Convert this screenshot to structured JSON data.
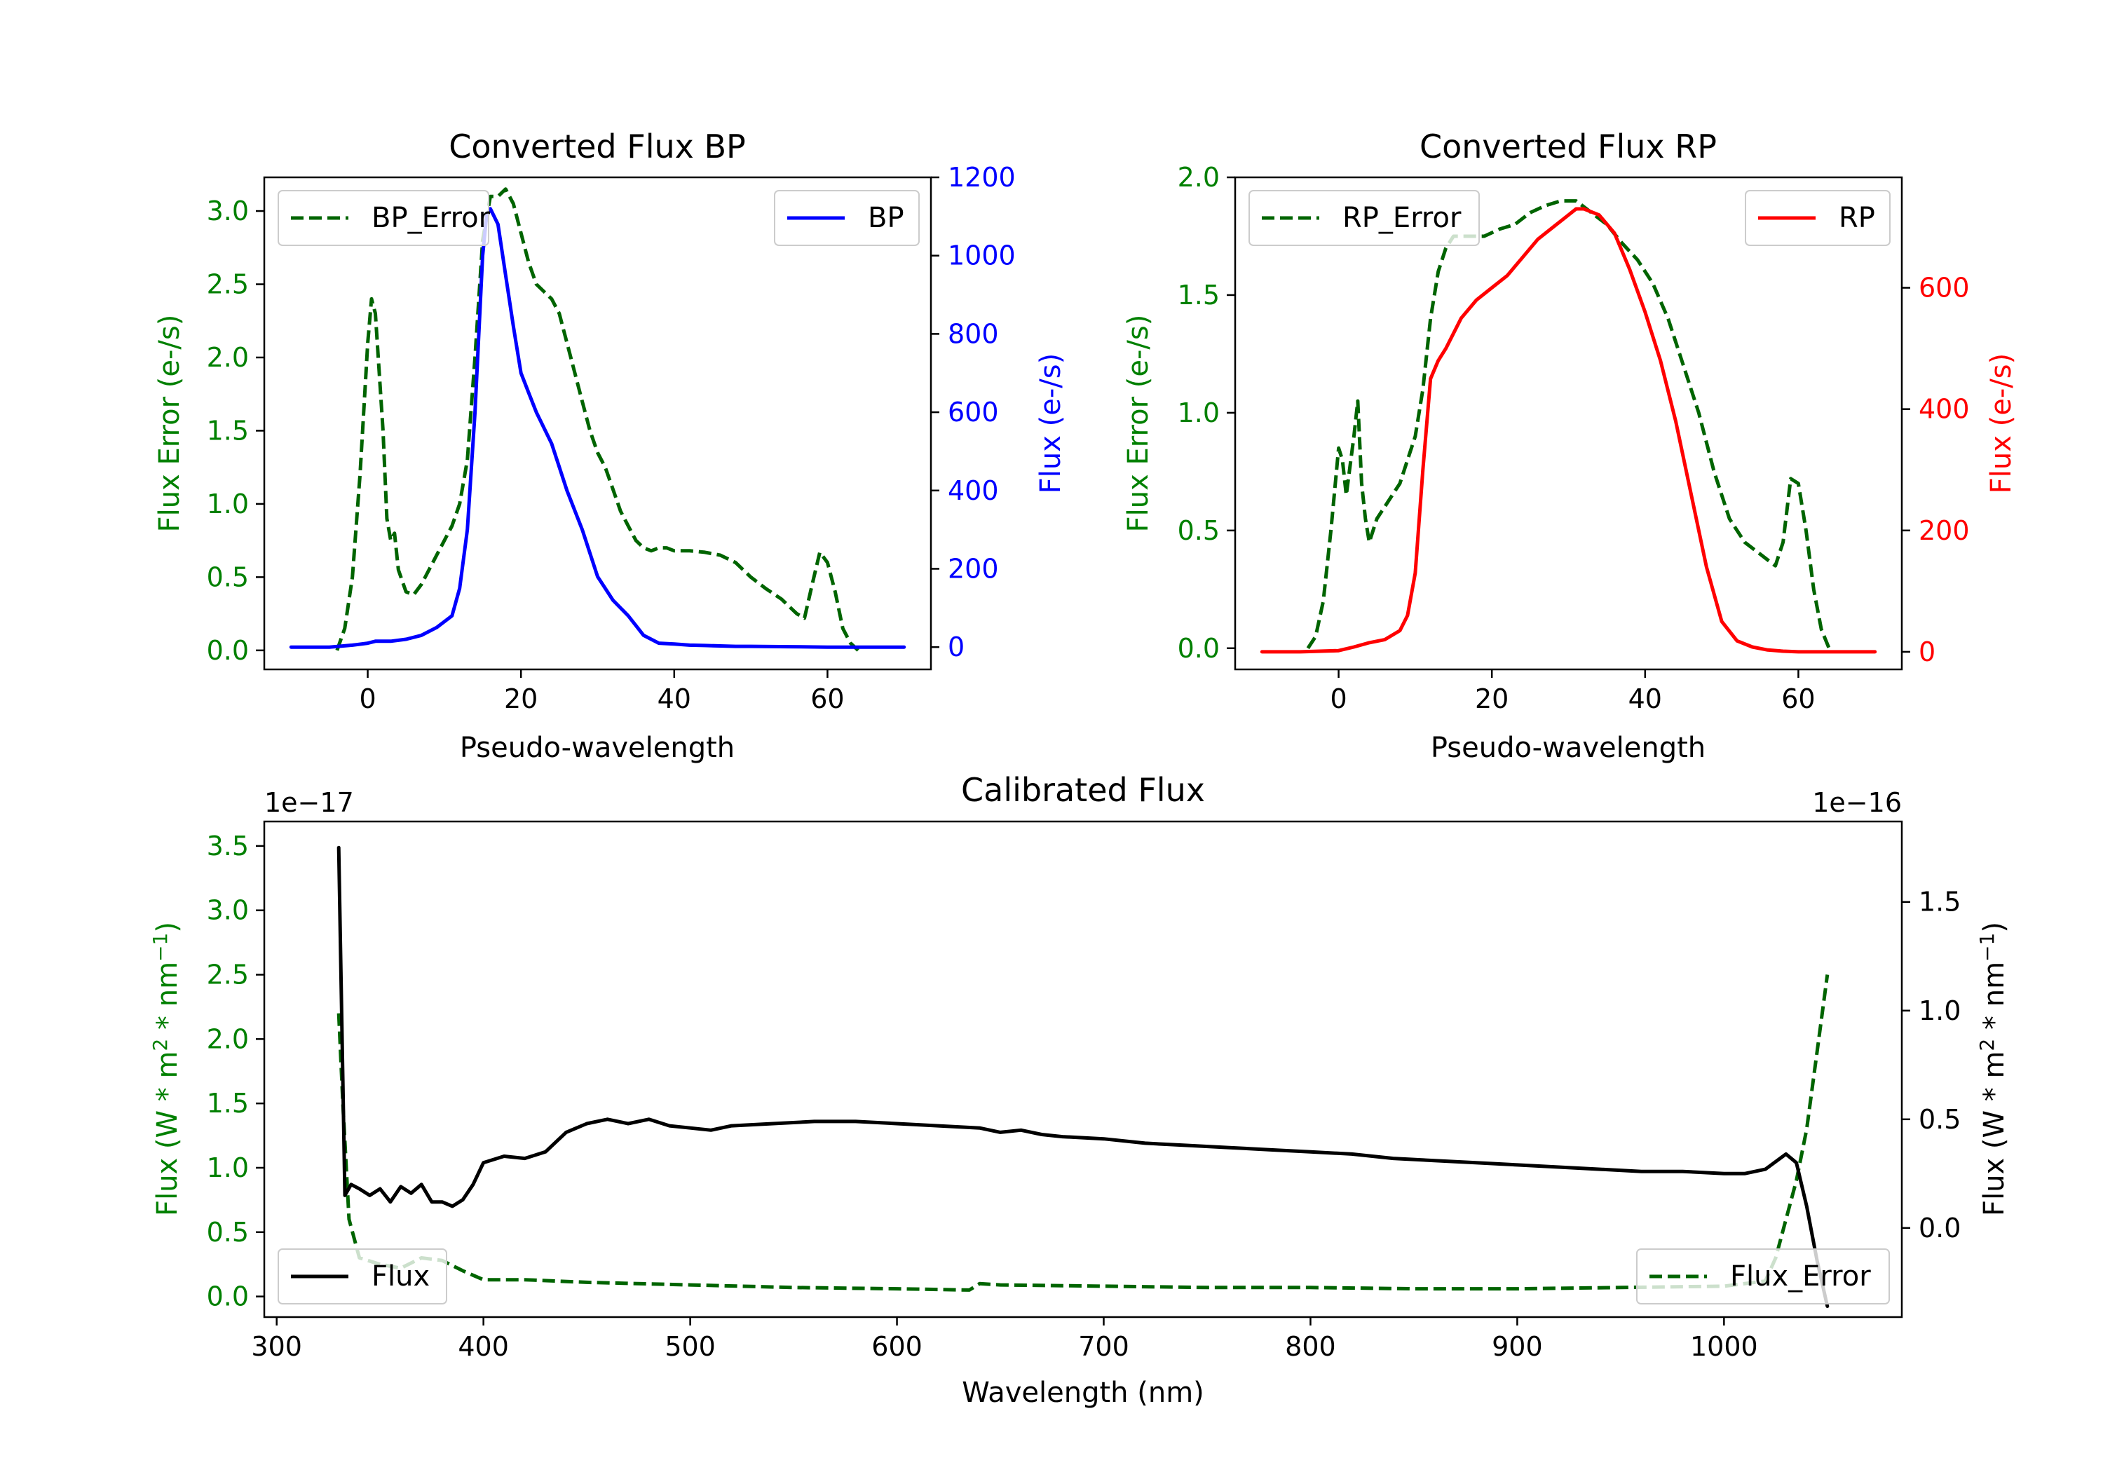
{
  "chart_data": [
    {
      "type": "line",
      "title": "Converted Flux BP",
      "xlabel": "Pseudo-wavelength",
      "ylabel_left": "Flux Error (e-/s)",
      "ylabel_right": "Flux (e-/s)",
      "xlim": [
        -13.5,
        73.5
      ],
      "xticks": [
        0,
        20,
        40,
        60
      ],
      "ylim_left": [
        -0.13,
        3.23
      ],
      "yticks_left": [
        0.0,
        0.5,
        1.0,
        1.5,
        2.0,
        2.5,
        3.0
      ],
      "ylim_right": [
        -57,
        1200
      ],
      "yticks_right": [
        0,
        200,
        400,
        600,
        800,
        1000,
        1200
      ],
      "colors": {
        "left_axis": "#008000",
        "right_axis": "#0000ff"
      },
      "legend_left": {
        "label": "BP_Error",
        "placement": "upper left"
      },
      "legend_right": {
        "label": "BP",
        "placement": "upper right"
      },
      "series": [
        {
          "name": "BP_Error",
          "axis": "left",
          "style": "dashed",
          "color": "#006400",
          "x": [
            -4,
            -3,
            -2,
            -1,
            0,
            0.5,
            1,
            2,
            2.5,
            3,
            3.5,
            4,
            5,
            6,
            7,
            8,
            9,
            10,
            11,
            12,
            13,
            14,
            15,
            16,
            17,
            18,
            19,
            20,
            21,
            22,
            23,
            24,
            25,
            26,
            27,
            28,
            29,
            30,
            31,
            32,
            33,
            34,
            35,
            36,
            37,
            38,
            39,
            40,
            42,
            44,
            46,
            48,
            50,
            52,
            54,
            56,
            57,
            58,
            59,
            60,
            61,
            62,
            63,
            64
          ],
          "values": [
            0.0,
            0.15,
            0.5,
            1.2,
            2.1,
            2.4,
            2.3,
            1.5,
            0.9,
            0.75,
            0.8,
            0.55,
            0.4,
            0.38,
            0.45,
            0.55,
            0.65,
            0.75,
            0.85,
            1.0,
            1.3,
            2.0,
            2.8,
            3.1,
            3.1,
            3.15,
            3.05,
            2.85,
            2.65,
            2.5,
            2.45,
            2.4,
            2.3,
            2.1,
            1.9,
            1.7,
            1.5,
            1.35,
            1.25,
            1.1,
            0.95,
            0.85,
            0.75,
            0.7,
            0.68,
            0.7,
            0.7,
            0.68,
            0.68,
            0.67,
            0.65,
            0.6,
            0.5,
            0.42,
            0.35,
            0.25,
            0.22,
            0.45,
            0.67,
            0.6,
            0.4,
            0.15,
            0.05,
            0.0
          ]
        },
        {
          "name": "BP",
          "axis": "right",
          "style": "solid",
          "color": "#0000ff",
          "x": [
            -10,
            -5,
            -2,
            0,
            1,
            3,
            5,
            7,
            9,
            11,
            12,
            13,
            14,
            15,
            15.5,
            16,
            17,
            18,
            19,
            20,
            21,
            22,
            24,
            26,
            28,
            30,
            32,
            34,
            36,
            38,
            40,
            42,
            44,
            46,
            48,
            50,
            55,
            60,
            65,
            70
          ],
          "values": [
            0,
            0,
            5,
            10,
            15,
            15,
            20,
            30,
            50,
            80,
            150,
            300,
            600,
            1000,
            1100,
            1120,
            1080,
            950,
            820,
            700,
            650,
            600,
            520,
            400,
            300,
            180,
            120,
            80,
            30,
            10,
            8,
            5,
            4,
            3,
            2,
            2,
            1,
            0,
            0,
            0
          ]
        }
      ]
    },
    {
      "type": "line",
      "title": "Converted Flux RP",
      "xlabel": "Pseudo-wavelength",
      "ylabel_left": "Flux Error (e-/s)",
      "ylabel_right": "Flux (e-/s)",
      "xlim": [
        -13.5,
        73.5
      ],
      "xticks": [
        0,
        20,
        40,
        60
      ],
      "ylim_left": [
        -0.09,
        2.0
      ],
      "yticks_left": [
        0.0,
        0.5,
        1.0,
        1.5,
        2.0
      ],
      "ylim_right": [
        -29,
        782
      ],
      "yticks_right": [
        0,
        200,
        400,
        600
      ],
      "colors": {
        "left_axis": "#008000",
        "right_axis": "#ff0000"
      },
      "legend_left": {
        "label": "RP_Error",
        "placement": "upper left"
      },
      "legend_right": {
        "label": "RP",
        "placement": "upper right"
      },
      "series": [
        {
          "name": "RP_Error",
          "axis": "left",
          "style": "dashed",
          "color": "#006400",
          "x": [
            -4,
            -3,
            -2,
            -1,
            0,
            0.5,
            1,
            2,
            2.5,
            3,
            3.5,
            4,
            5,
            6,
            7,
            8,
            9,
            10,
            11,
            12,
            13,
            14,
            15,
            17,
            19,
            21,
            23,
            25,
            27,
            29,
            31,
            33,
            35,
            37,
            39,
            41,
            43,
            45,
            47,
            49,
            51,
            53,
            55,
            57,
            58,
            59,
            60,
            61,
            62,
            63,
            64
          ],
          "values": [
            0.0,
            0.05,
            0.2,
            0.5,
            0.85,
            0.8,
            0.65,
            0.9,
            1.05,
            0.7,
            0.55,
            0.45,
            0.55,
            0.6,
            0.65,
            0.7,
            0.8,
            0.9,
            1.1,
            1.4,
            1.6,
            1.7,
            1.75,
            1.75,
            1.75,
            1.78,
            1.8,
            1.85,
            1.88,
            1.9,
            1.9,
            1.85,
            1.8,
            1.72,
            1.65,
            1.55,
            1.4,
            1.2,
            1.0,
            0.75,
            0.55,
            0.45,
            0.4,
            0.35,
            0.45,
            0.72,
            0.7,
            0.5,
            0.25,
            0.08,
            0.0
          ]
        },
        {
          "name": "RP",
          "axis": "right",
          "style": "solid",
          "color": "#ff0000",
          "x": [
            -10,
            -5,
            0,
            2,
            4,
            6,
            8,
            9,
            10,
            11,
            12,
            13,
            14,
            16,
            18,
            20,
            22,
            24,
            26,
            28,
            30,
            31,
            32,
            33,
            34,
            36,
            38,
            40,
            42,
            44,
            46,
            48,
            50,
            52,
            54,
            56,
            58,
            60,
            65,
            70
          ],
          "values": [
            0,
            0,
            2,
            8,
            15,
            20,
            35,
            60,
            130,
            300,
            450,
            480,
            500,
            550,
            580,
            600,
            620,
            650,
            680,
            700,
            720,
            730,
            730,
            725,
            720,
            690,
            630,
            560,
            480,
            380,
            260,
            140,
            50,
            18,
            8,
            3,
            1,
            0,
            0,
            0
          ]
        }
      ]
    },
    {
      "type": "line",
      "title": "Calibrated Flux",
      "xlabel": "Wavelength (nm)",
      "ylabel_left": "Flux (W * m",
      "ylabel_right": "Flux (W * m",
      "ylabel_unit_tail": " * nm",
      "ylabel_exp_2": "2",
      "ylabel_exp_m1": "−1",
      "ylabel_close": ")",
      "offset_left": "1e−17",
      "offset_right": "1e−16",
      "xlim": [
        294,
        1086
      ],
      "xticks": [
        300,
        400,
        500,
        600,
        700,
        800,
        900,
        1000
      ],
      "ylim_left": [
        -0.16,
        3.69
      ],
      "yticks_left": [
        "0.0",
        "0.5",
        "1.0",
        "1.5",
        "2.0",
        "2.5",
        "3.0",
        "3.5"
      ],
      "ylim_right": [
        -0.41,
        1.87
      ],
      "yticks_right": [
        "0.0",
        "0.5",
        "1.0",
        "1.5"
      ],
      "colors": {
        "left_axis": "#008000",
        "right_axis": "#000000"
      },
      "legend_left": {
        "label": "Flux",
        "placement": "lower left"
      },
      "legend_right": {
        "label": "Flux_Error",
        "placement": "lower right"
      },
      "series": [
        {
          "name": "Flux_Error",
          "axis": "left",
          "style": "dashed",
          "color": "#006400",
          "x": [
            330,
            332,
            335,
            340,
            350,
            360,
            370,
            380,
            390,
            400,
            420,
            450,
            500,
            550,
            600,
            635,
            640,
            650,
            700,
            750,
            800,
            850,
            900,
            950,
            1000,
            1020,
            1025,
            1030,
            1035,
            1040,
            1045,
            1050
          ],
          "values": [
            2.2,
            1.5,
            0.6,
            0.3,
            0.25,
            0.22,
            0.3,
            0.28,
            0.2,
            0.13,
            0.13,
            0.11,
            0.09,
            0.07,
            0.06,
            0.05,
            0.1,
            0.09,
            0.08,
            0.07,
            0.07,
            0.06,
            0.06,
            0.07,
            0.08,
            0.12,
            0.3,
            0.6,
            0.9,
            1.3,
            1.9,
            2.5
          ]
        },
        {
          "name": "Flux",
          "axis": "right",
          "style": "solid",
          "color": "#000000",
          "x": [
            330,
            333,
            336,
            340,
            345,
            350,
            355,
            360,
            365,
            370,
            375,
            380,
            385,
            390,
            395,
            400,
            410,
            420,
            430,
            440,
            450,
            460,
            470,
            480,
            490,
            500,
            510,
            520,
            540,
            560,
            580,
            600,
            620,
            640,
            650,
            660,
            670,
            680,
            700,
            720,
            740,
            760,
            780,
            800,
            820,
            840,
            860,
            880,
            900,
            920,
            940,
            960,
            980,
            1000,
            1010,
            1020,
            1030,
            1035,
            1040,
            1045,
            1050
          ],
          "values": [
            1.75,
            0.15,
            0.2,
            0.18,
            0.15,
            0.18,
            0.12,
            0.19,
            0.16,
            0.2,
            0.12,
            0.12,
            0.1,
            0.13,
            0.2,
            0.3,
            0.33,
            0.32,
            0.35,
            0.44,
            0.48,
            0.5,
            0.48,
            0.5,
            0.47,
            0.46,
            0.45,
            0.47,
            0.48,
            0.49,
            0.49,
            0.48,
            0.47,
            0.46,
            0.44,
            0.45,
            0.43,
            0.42,
            0.41,
            0.39,
            0.38,
            0.37,
            0.36,
            0.35,
            0.34,
            0.32,
            0.31,
            0.3,
            0.29,
            0.28,
            0.27,
            0.26,
            0.26,
            0.25,
            0.25,
            0.27,
            0.34,
            0.3,
            0.1,
            -0.15,
            -0.36
          ]
        }
      ]
    }
  ]
}
